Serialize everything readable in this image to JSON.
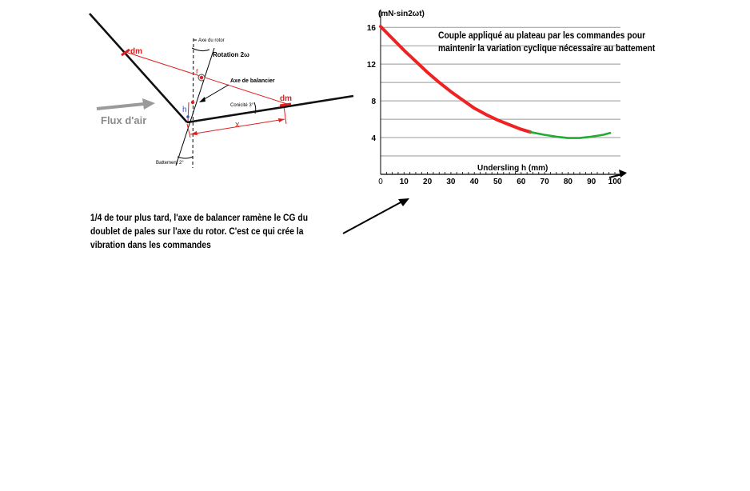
{
  "diagram": {
    "dm_left": "dm",
    "dm_right": "dm",
    "rotor_axis": "Axe du rotor",
    "rotation": "Rotation 2ω",
    "r": "r",
    "balancer_axis": "Axe de balancier",
    "h": "h",
    "conicity": "Conicité 3°",
    "x": "x",
    "airflow": "Flux d'air",
    "flapping": "Battement 2°"
  },
  "note_left": "1/4 de tour plus tard, l'axe de balancer ramène le CG du doublet de pales sur l'axe du rotor. C'est ce qui crée la vibration dans les  commandes",
  "note_right": "Couple appliqué au plateau par les commandes pour maintenir la variation cyclique nécessaire au battement",
  "colors": {
    "red_curve": "#ee2222",
    "green_curve": "#22aa33",
    "blade": "#111111",
    "construction": "#e02020",
    "airflow_arrow": "#9a9a9a"
  },
  "chart_data": {
    "type": "line",
    "ylabel": "(mN·sin2ωt)",
    "xlabel": "Undersling  h (mm)",
    "xlim": [
      0,
      100
    ],
    "ylim": [
      0,
      17.5
    ],
    "x_ticks": [
      0,
      10,
      20,
      30,
      40,
      50,
      60,
      70,
      80,
      90,
      100
    ],
    "y_ticks": [
      4,
      8,
      12,
      16
    ],
    "grid": true,
    "series": [
      {
        "color": "red",
        "x": [
          0,
          5,
          10,
          15,
          20,
          25,
          30,
          35,
          40,
          45,
          50,
          55,
          60,
          64
        ],
        "y": [
          16.1,
          14.8,
          13.5,
          12.3,
          11.1,
          10.0,
          9.0,
          8.1,
          7.2,
          6.5,
          5.9,
          5.4,
          4.9,
          4.6
        ]
      },
      {
        "color": "green",
        "x": [
          64,
          70,
          75,
          80,
          85,
          90,
          95,
          98
        ],
        "y": [
          4.6,
          4.3,
          4.1,
          3.95,
          3.95,
          4.1,
          4.3,
          4.5
        ]
      }
    ]
  }
}
